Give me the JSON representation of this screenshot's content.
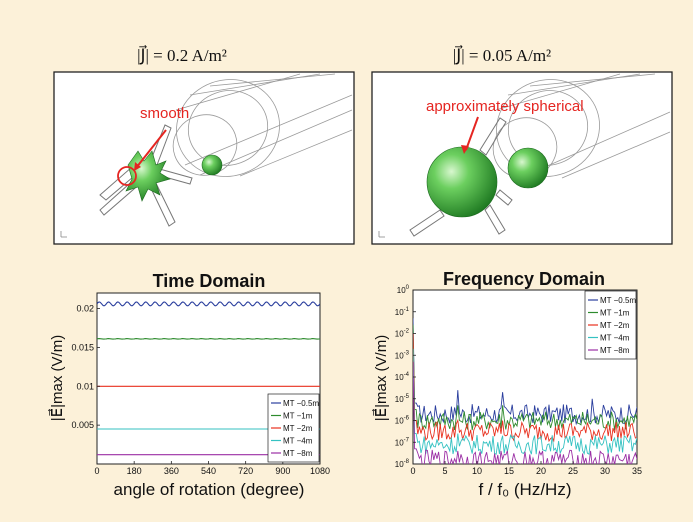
{
  "panels_top": [
    {
      "title": "|J⃗| = 0.2 A/m²",
      "annotation": "smooth",
      "annotation_color": "#e52521",
      "axis_icon": "axis-triad-icon"
    },
    {
      "title": "|J⃗| = 0.05 A/m²",
      "annotation": "approximately spherical",
      "annotation_color": "#e52521",
      "axis_icon": "axis-triad-icon"
    }
  ],
  "colors": {
    "background": "#fcf1d9",
    "blob_green": "#3fae3f",
    "blob_highlight": "#c9f2c0",
    "series": [
      "#2b3f9e",
      "#2e8b2e",
      "#e8311f",
      "#35c2c2",
      "#9b2fa5"
    ]
  },
  "chart_data": [
    {
      "type": "line",
      "title": "Time Domain",
      "xlabel": "angle of rotation (degree)",
      "ylabel": "|E⃗|max (V/m)",
      "xlim": [
        0,
        1080
      ],
      "ylim": [
        0,
        0.022
      ],
      "xticks": [
        0,
        180,
        360,
        540,
        720,
        900,
        1080
      ],
      "yticks": [
        0.005,
        0.01,
        0.015,
        0.02
      ],
      "ytick_labels": [
        "0.005",
        "0.01",
        "0.015",
        "0.02"
      ],
      "legend_position": "bottom-right",
      "grid": false,
      "series": [
        {
          "name": "MT −0.5m",
          "level": 0.0206,
          "ripple": 0.00025
        },
        {
          "name": "MT −1m",
          "level": 0.0161,
          "ripple": 3e-05
        },
        {
          "name": "MT −2m",
          "level": 0.01,
          "ripple": 0.0
        },
        {
          "name": "MT −4m",
          "level": 0.0045,
          "ripple": 0.0
        },
        {
          "name": "MT −8m",
          "level": 0.0012,
          "ripple": 0.0
        }
      ]
    },
    {
      "type": "line",
      "title": "Frequency Domain",
      "xlabel": "f / f₀ (Hz/Hz)",
      "ylabel": "|E⃗|max (V/m)",
      "xlim": [
        0,
        35
      ],
      "ylim_log10": [
        -8,
        0
      ],
      "yscale": "log",
      "xticks": [
        0,
        5,
        10,
        15,
        20,
        25,
        30,
        35
      ],
      "yticks_exp": [
        0,
        -1,
        -2,
        -3,
        -4,
        -5,
        -6,
        -7,
        -8
      ],
      "ytick_base": "10",
      "legend_position": "top-right",
      "grid": false,
      "series": [
        {
          "name": "MT −0.5m",
          "dc_log10": -1.3,
          "base_log10": -5.7,
          "spikes": [
            [
              7,
              -4.6
            ],
            [
              14,
              -4.7
            ],
            [
              28,
              -5.0
            ]
          ]
        },
        {
          "name": "MT −1m",
          "dc_log10": -1.6,
          "base_log10": -6.0,
          "spikes": [
            [
              7,
              -5.3
            ],
            [
              14,
              -5.3
            ]
          ]
        },
        {
          "name": "MT −2m",
          "dc_log10": -2.0,
          "base_log10": -6.5,
          "spikes": [
            [
              7,
              -6.0
            ],
            [
              14,
              -6.0
            ]
          ]
        },
        {
          "name": "MT −4m",
          "dc_log10": -2.7,
          "base_log10": -7.1,
          "spikes": [
            [
              7,
              -6.6
            ],
            [
              14,
              -6.7
            ]
          ]
        },
        {
          "name": "MT −8m",
          "dc_log10": -3.3,
          "base_log10": -7.8,
          "spikes": [
            [
              7,
              -7.4
            ]
          ]
        }
      ]
    }
  ]
}
